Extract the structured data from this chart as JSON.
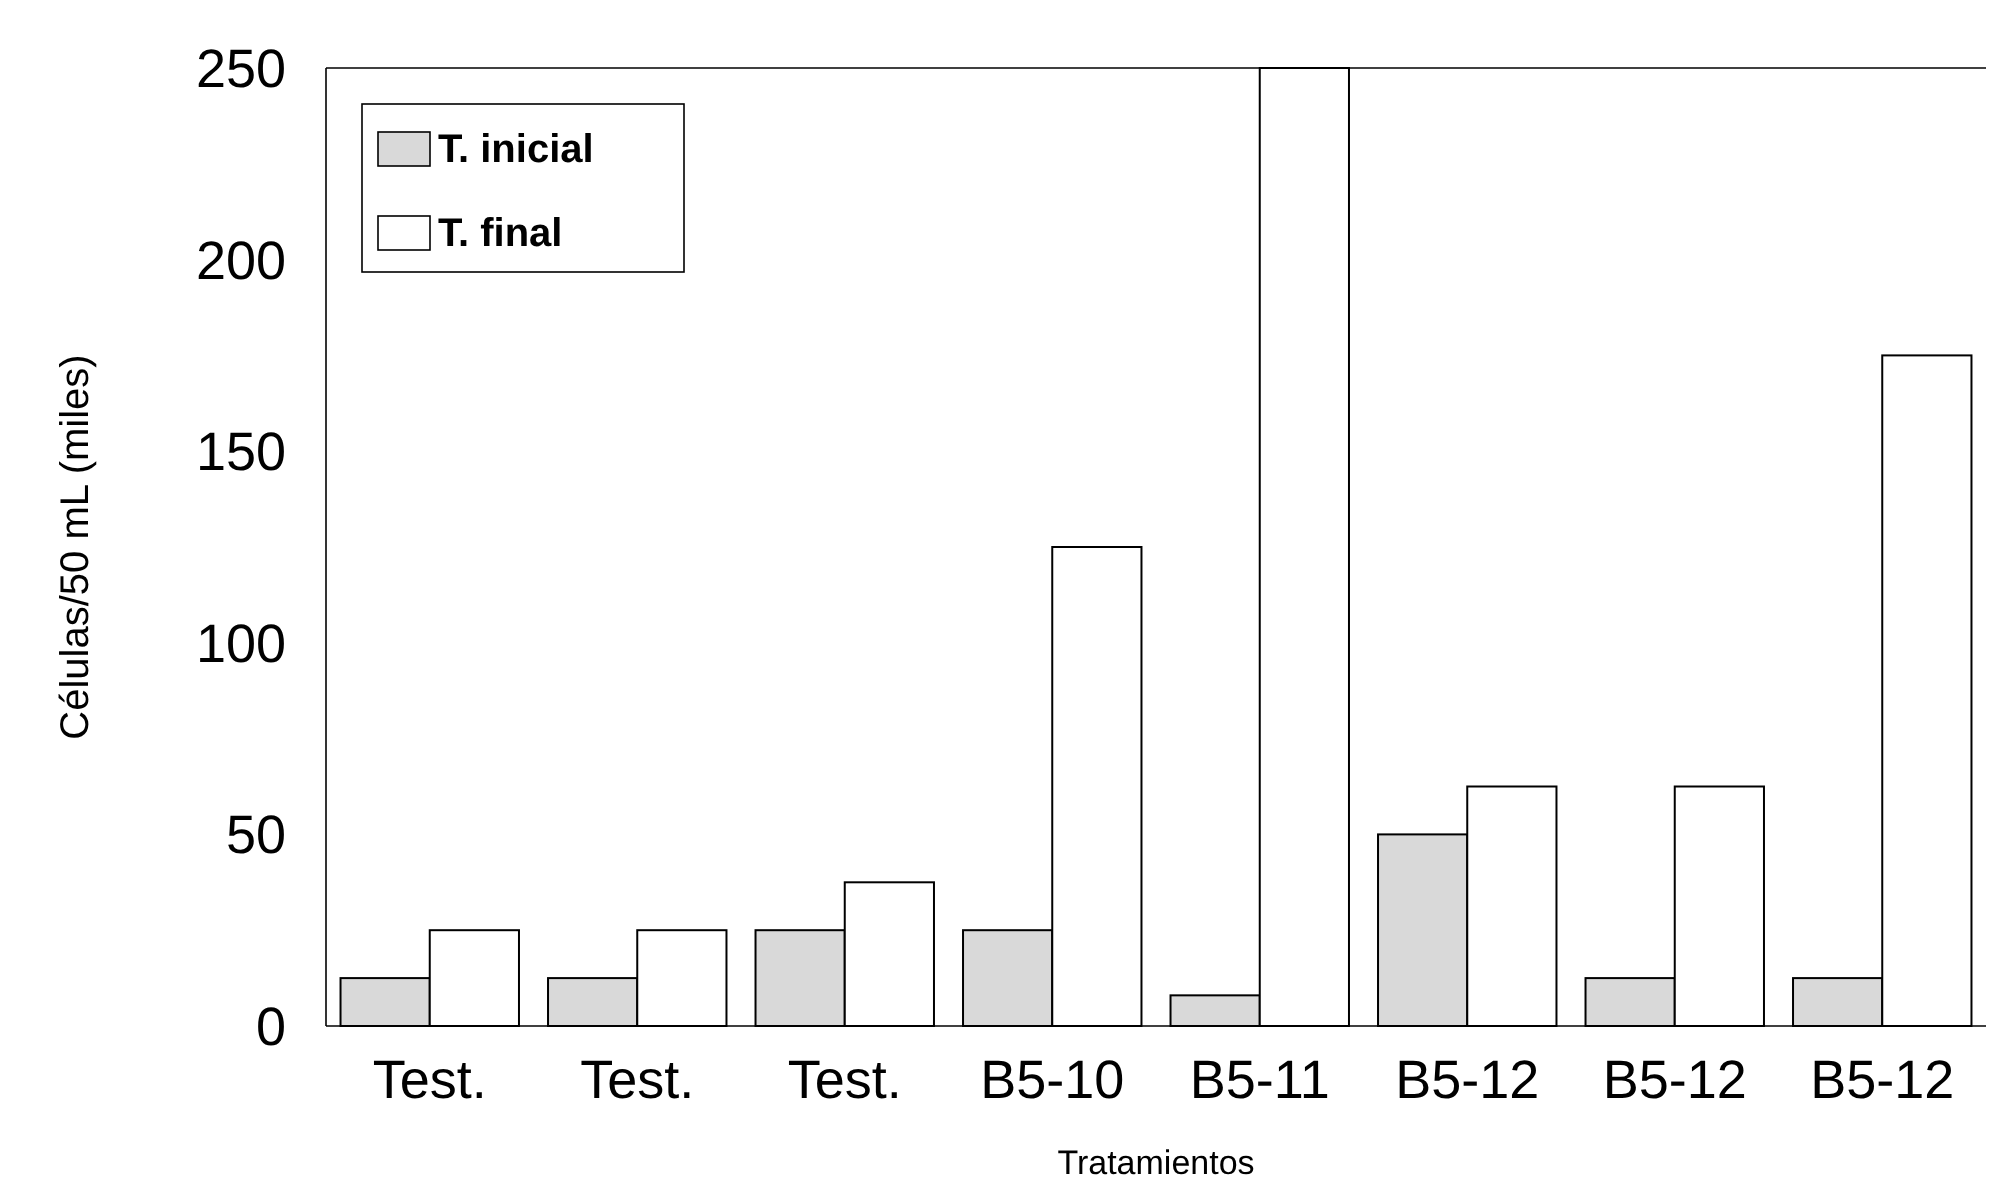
{
  "chart_data": {
    "type": "bar",
    "xlabel": "Tratamientos",
    "ylabel": "Células/50 mL (miles)",
    "categories": [
      "Test.",
      "Test.",
      "Test.",
      "B5-10",
      "B5-11",
      "B5-12",
      "B5-12",
      "B5-12"
    ],
    "series": [
      {
        "name": "T. inicial",
        "color": "#d9d9d9",
        "values": [
          12.5,
          12.5,
          25,
          25,
          8,
          50,
          12.5,
          12.5
        ]
      },
      {
        "name": "T. final",
        "color": "#ffffff",
        "values": [
          25,
          25,
          37.5,
          125,
          250,
          62.5,
          62.5,
          175
        ]
      }
    ],
    "ylim": [
      0,
      250
    ],
    "yticks": [
      0,
      50,
      100,
      150,
      200,
      250
    ],
    "grid": false,
    "legend": "top left"
  }
}
